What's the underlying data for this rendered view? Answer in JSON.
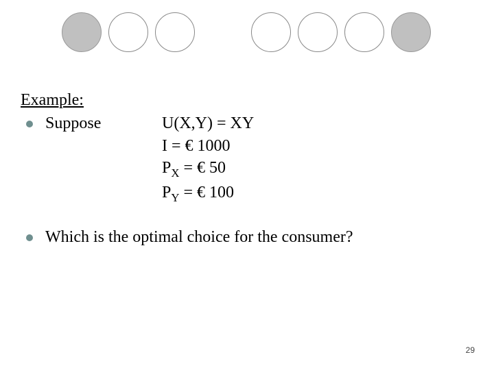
{
  "circles": {
    "count": 7,
    "filled_color": "#c0c0c0",
    "empty_color": "#ffffff",
    "border_color": "#888888",
    "pattern": [
      "filled",
      "empty",
      "empty",
      "gap",
      "empty",
      "empty",
      "empty",
      "filled"
    ]
  },
  "heading": "Example:",
  "bullet1": {
    "label": "Suppose",
    "lines": {
      "utility": "U(X,Y) = XY",
      "income": "I = € 1000",
      "price_x_pre": "P",
      "price_x_sub": "X",
      "price_x_post": " = € 50",
      "price_y_pre": "P",
      "price_y_sub": "Y",
      "price_y_post": " = € 100"
    }
  },
  "bullet2": {
    "text": "Which is the optimal choice for the consumer?"
  },
  "bullet_color": "#6f8f8f",
  "page_number": "29"
}
